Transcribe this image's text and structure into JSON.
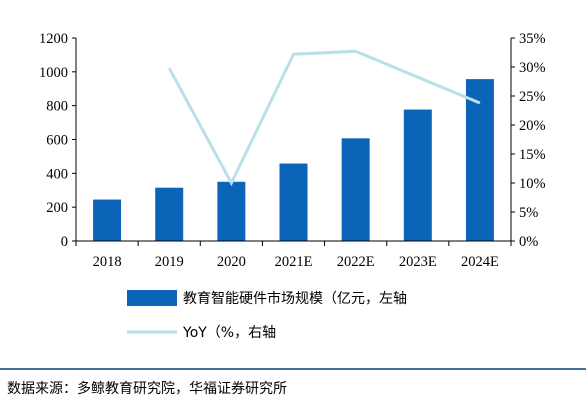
{
  "chart_data": {
    "type": "bar",
    "categories": [
      "2018",
      "2019",
      "2020",
      "2021E",
      "2022E",
      "2023E",
      "2024E"
    ],
    "series": [
      {
        "name": "教育智能硬件市场规模（亿元，左轴",
        "type": "bar",
        "axis": "left",
        "color": "#0b64b7",
        "values": [
          245,
          315,
          350,
          458,
          607,
          777,
          957
        ]
      },
      {
        "name": "YoY（%，右轴",
        "type": "line",
        "axis": "right",
        "color": "#b9dfe9",
        "values": [
          null,
          29.8,
          10.0,
          32.2,
          32.7,
          null,
          23.8
        ]
      }
    ],
    "y_left": {
      "ylim": [
        0,
        1200
      ],
      "ticks": [
        "0",
        "200",
        "400",
        "600",
        "800",
        "1000",
        "1200"
      ]
    },
    "y_right": {
      "ylim": [
        0,
        35
      ],
      "ticks": [
        "0%",
        "5%",
        "10%",
        "15%",
        "20%",
        "25%",
        "30%",
        "35%"
      ]
    },
    "grid": false,
    "legend_position": "bottom"
  },
  "source_note": "数据来源：多鲸教育研究院，华福证券研究所"
}
